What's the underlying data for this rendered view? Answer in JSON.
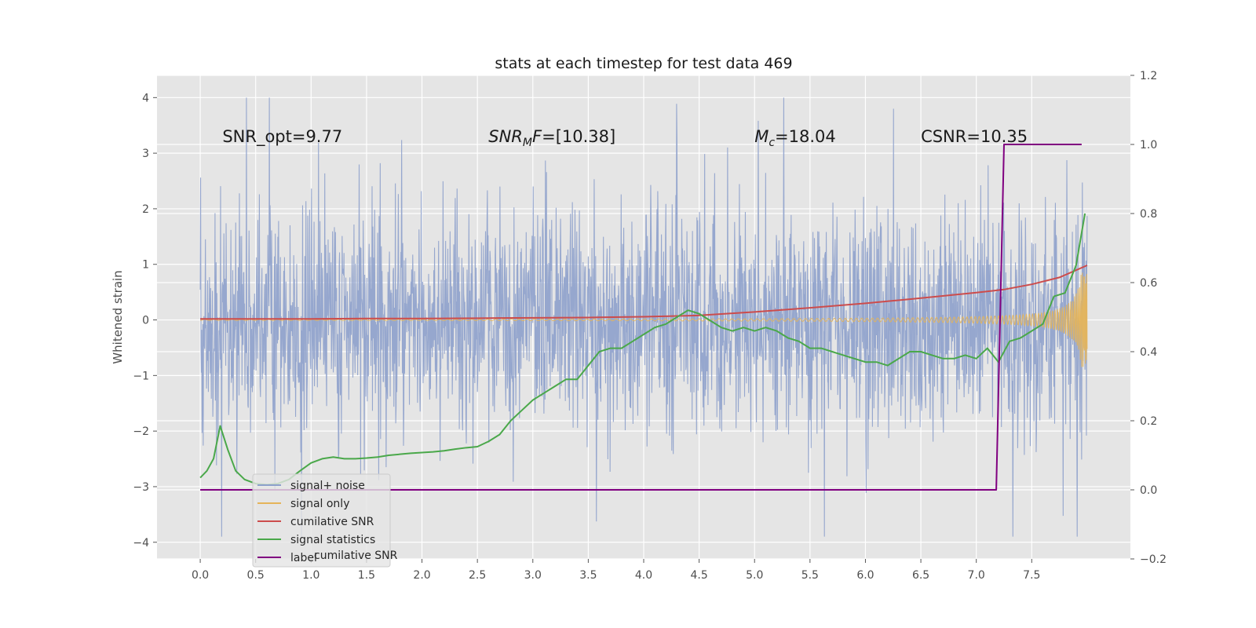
{
  "chart_data": {
    "type": "line",
    "title": "stats at each timestep for test data 469",
    "ylabel": "Whitened strain",
    "xlim": [
      -0.39,
      8.39
    ],
    "ylim": [
      -4.3,
      4.4
    ],
    "y2lim": [
      -0.2,
      1.2
    ],
    "xticks": [
      0.0,
      0.5,
      1.0,
      1.5,
      2.0,
      2.5,
      3.0,
      3.5,
      4.0,
      4.5,
      5.0,
      5.5,
      6.0,
      6.5,
      7.0,
      7.5
    ],
    "xtick_labels": [
      "0.0",
      "0.5",
      "1.0",
      "1.5",
      "2.0",
      "2.5",
      "3.0",
      "3.5",
      "4.0",
      "4.5",
      "5.0",
      "5.5",
      "6.0",
      "6.5",
      "7.0",
      "7.5"
    ],
    "yticks": [
      -4,
      -3,
      -2,
      -1,
      0,
      1,
      2,
      3,
      4
    ],
    "ytick_labels": [
      "−4",
      "−3",
      "−2",
      "−1",
      "0",
      "1",
      "2",
      "3",
      "4"
    ],
    "y2ticks": [
      -0.2,
      0.0,
      0.2,
      0.4,
      0.6,
      0.8,
      1.0,
      1.2
    ],
    "y2tick_labels": [
      "−0.2",
      "0.0",
      "0.2",
      "0.4",
      "0.6",
      "0.8",
      "1.0",
      "1.2"
    ],
    "grid": true,
    "legend_position": "lower-left",
    "annotations": [
      {
        "id": "snr-opt",
        "x": 0.2,
        "y": 3.2,
        "parts": [
          {
            "text": "SNR_opt=9.77"
          }
        ]
      },
      {
        "id": "snr-mf",
        "x": 2.6,
        "y": 3.2,
        "parts": [
          {
            "text": "SNR",
            "italic": true
          },
          {
            "text": "M",
            "italic": true,
            "sub": true
          },
          {
            "text": "F",
            "italic": true
          },
          {
            "text": "=[10.38]"
          }
        ]
      },
      {
        "id": "mc",
        "x": 5.0,
        "y": 3.2,
        "parts": [
          {
            "text": "M",
            "italic": true
          },
          {
            "text": "c",
            "italic": true,
            "sub": true
          },
          {
            "text": "=18.04"
          }
        ]
      },
      {
        "id": "csnr",
        "x": 6.5,
        "y": 3.2,
        "parts": [
          {
            "text": "CSNR=10.35"
          }
        ]
      }
    ],
    "series": [
      {
        "name": "signal+ noise",
        "color": "#8da0cb",
        "axis": "left",
        "kind": "noise",
        "x_range": [
          0.0,
          8.0
        ],
        "amplitude_std": 1.0,
        "y_range_observed": [
          -3.9,
          4.0
        ]
      },
      {
        "name": "signal only",
        "color": "#e5b45a",
        "axis": "left",
        "kind": "chirp",
        "x_range": [
          0.0,
          8.0
        ],
        "max_amplitude": 0.85
      },
      {
        "name": "cumilative SNR",
        "color": "#cc4c4c",
        "axis": "right",
        "x": [
          0.0,
          0.5,
          1.0,
          1.5,
          2.0,
          2.5,
          3.0,
          3.5,
          4.0,
          4.5,
          5.0,
          5.5,
          6.0,
          6.5,
          7.0,
          7.25,
          7.5,
          7.75,
          8.0
        ],
        "y": [
          0.495,
          0.495,
          0.495,
          0.496,
          0.496,
          0.497,
          0.498,
          0.499,
          0.501,
          0.505,
          0.515,
          0.527,
          0.54,
          0.555,
          0.571,
          0.58,
          0.595,
          0.615,
          0.65
        ]
      },
      {
        "name": "signal statistics",
        "color": "#4aa84a",
        "axis": "right",
        "x": [
          0.0,
          0.06,
          0.12,
          0.18,
          0.25,
          0.32,
          0.4,
          0.5,
          0.6,
          0.7,
          0.8,
          0.9,
          1.0,
          1.1,
          1.2,
          1.3,
          1.4,
          1.5,
          1.6,
          1.7,
          1.8,
          1.9,
          2.0,
          2.1,
          2.2,
          2.3,
          2.4,
          2.5,
          2.6,
          2.7,
          2.8,
          2.9,
          3.0,
          3.1,
          3.2,
          3.3,
          3.4,
          3.5,
          3.6,
          3.7,
          3.8,
          3.9,
          4.0,
          4.1,
          4.2,
          4.3,
          4.4,
          4.5,
          4.6,
          4.7,
          4.8,
          4.9,
          5.0,
          5.1,
          5.2,
          5.3,
          5.4,
          5.5,
          5.6,
          5.7,
          5.8,
          5.9,
          6.0,
          6.1,
          6.2,
          6.3,
          6.4,
          6.5,
          6.6,
          6.7,
          6.8,
          6.9,
          7.0,
          7.1,
          7.2,
          7.3,
          7.4,
          7.5,
          7.6,
          7.7,
          7.8,
          7.9,
          7.98
        ],
        "y": [
          0.035,
          0.055,
          0.09,
          0.185,
          0.115,
          0.055,
          0.03,
          0.018,
          0.015,
          0.018,
          0.03,
          0.055,
          0.078,
          0.09,
          0.095,
          0.09,
          0.09,
          0.092,
          0.095,
          0.1,
          0.103,
          0.106,
          0.108,
          0.11,
          0.113,
          0.118,
          0.122,
          0.125,
          0.14,
          0.16,
          0.2,
          0.23,
          0.26,
          0.28,
          0.3,
          0.32,
          0.32,
          0.36,
          0.4,
          0.41,
          0.41,
          0.43,
          0.45,
          0.47,
          0.48,
          0.5,
          0.52,
          0.51,
          0.49,
          0.47,
          0.46,
          0.47,
          0.46,
          0.47,
          0.46,
          0.44,
          0.43,
          0.41,
          0.41,
          0.4,
          0.39,
          0.38,
          0.37,
          0.37,
          0.36,
          0.38,
          0.4,
          0.4,
          0.39,
          0.38,
          0.38,
          0.39,
          0.38,
          0.41,
          0.37,
          0.43,
          0.44,
          0.46,
          0.48,
          0.56,
          0.57,
          0.65,
          0.8
        ]
      },
      {
        "name": "label",
        "color": "#800080",
        "axis": "right",
        "x": [
          0.0,
          7.18,
          7.25,
          7.95
        ],
        "y": [
          0.0,
          0.0,
          1.0,
          1.0
        ]
      }
    ],
    "legend_entries": [
      "signal+ noise",
      "signal only",
      "cumilative SNR",
      "signal statistics",
      "label"
    ],
    "legend_overlapped_text": "cumilative SNR"
  }
}
